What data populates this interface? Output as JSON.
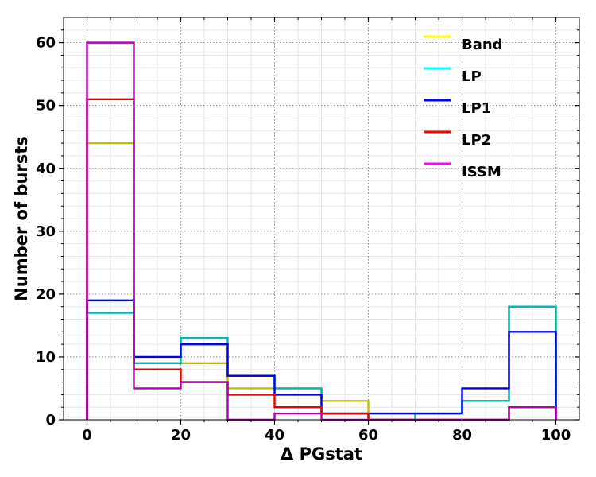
{
  "chart_data": {
    "type": "step",
    "xlabel": "Δ PGstat",
    "ylabel": "Number of bursts",
    "xlim": [
      -5,
      105
    ],
    "ylim": [
      0,
      64
    ],
    "xticks": [
      0,
      20,
      40,
      60,
      80,
      100
    ],
    "yticks": [
      0,
      10,
      20,
      30,
      40,
      50,
      60
    ],
    "grid": true,
    "legend_position": "top-right",
    "bin_edges": [
      0,
      10,
      20,
      30,
      40,
      50,
      60,
      70,
      80,
      90,
      100
    ],
    "series": [
      {
        "name": "Band",
        "color": "#ffff00",
        "line_color": "#c0c000",
        "values": [
          44,
          9,
          9,
          5,
          5,
          3,
          1,
          1,
          3,
          18
        ]
      },
      {
        "name": "LP",
        "color": "#00ffff",
        "line_color": "#00b4b4",
        "values": [
          17,
          9,
          13,
          7,
          5,
          1,
          0,
          1,
          3,
          18
        ]
      },
      {
        "name": "LP1",
        "color": "#0000ff",
        "line_color": "#0000e6",
        "values": [
          19,
          10,
          12,
          7,
          4,
          1,
          1,
          1,
          5,
          14
        ]
      },
      {
        "name": "LP2",
        "color": "#ff0000",
        "line_color": "#e60000",
        "values": [
          51,
          8,
          6,
          4,
          2,
          1,
          0,
          0,
          0,
          2
        ]
      },
      {
        "name": "ISSM",
        "color": "#ff00ff",
        "line_color": "#b000b0",
        "values": [
          60,
          5,
          6,
          0,
          1,
          0,
          0,
          0,
          0,
          2
        ]
      }
    ]
  }
}
